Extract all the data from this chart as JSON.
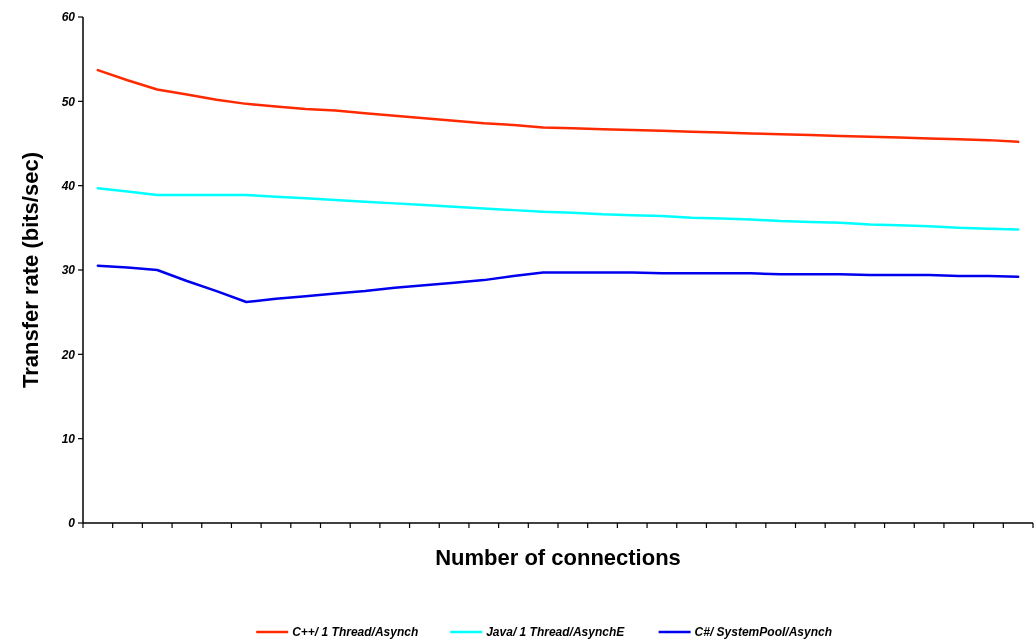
{
  "chart_data": {
    "type": "line",
    "xlabel": "Number of connections",
    "ylabel": "Transfer rate (bits/sec)",
    "categories": [
      null,
      null,
      null,
      null,
      null,
      null,
      null,
      null,
      null,
      null,
      null,
      null,
      null,
      null,
      null,
      null,
      null,
      null,
      null,
      null,
      null,
      null,
      null,
      null,
      null,
      null,
      null,
      null,
      null,
      null,
      null,
      null
    ],
    "series": [
      {
        "name": "C++/ 1 Thread/Asynch",
        "color": "#ff2a00",
        "values": [
          53.7,
          52.5,
          51.4,
          50.8,
          50.2,
          49.7,
          49.4,
          49.1,
          48.9,
          48.6,
          48.3,
          48.0,
          47.7,
          47.4,
          47.2,
          46.9,
          46.8,
          46.7,
          46.6,
          46.5,
          46.4,
          46.3,
          46.2,
          46.1,
          46.0,
          45.9,
          45.8,
          45.7,
          45.6,
          45.5,
          45.4,
          45.2
        ]
      },
      {
        "name": "Java/ 1 Thread/AsynchE",
        "color": "#00ffff",
        "values": [
          39.7,
          39.3,
          38.9,
          38.9,
          38.9,
          38.9,
          38.7,
          38.5,
          38.3,
          38.1,
          37.9,
          37.7,
          37.5,
          37.3,
          37.1,
          36.9,
          36.8,
          36.6,
          36.5,
          36.4,
          36.2,
          36.1,
          36.0,
          35.8,
          35.7,
          35.6,
          35.4,
          35.3,
          35.2,
          35.0,
          34.9,
          34.8
        ]
      },
      {
        "name": "C#/ SystemPool/Asynch",
        "color": "#0000ee",
        "values": [
          30.5,
          30.3,
          30.0,
          28.7,
          27.5,
          26.2,
          26.6,
          26.9,
          27.2,
          27.5,
          27.9,
          28.2,
          28.5,
          28.8,
          29.3,
          29.7,
          29.7,
          29.7,
          29.7,
          29.6,
          29.6,
          29.6,
          29.6,
          29.5,
          29.5,
          29.5,
          29.4,
          29.4,
          29.4,
          29.3,
          29.3,
          29.2
        ]
      }
    ],
    "ylim": [
      0,
      60
    ],
    "yticks": [
      0,
      10,
      20,
      30,
      40,
      50,
      60
    ],
    "grid": false,
    "legend": "bottom",
    "marker": "none",
    "line_style": "solid"
  }
}
